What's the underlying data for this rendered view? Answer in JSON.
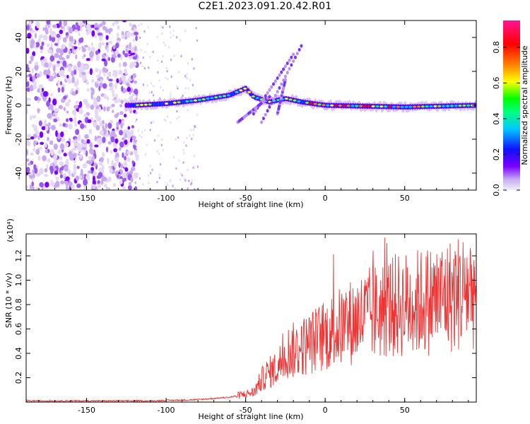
{
  "title": "C2E1.2023.091.20.42.R01",
  "colors": {
    "signal": "#ee3333",
    "axis": "#000000"
  },
  "chart_data": [
    {
      "type": "heatmap",
      "name": "spectrogram",
      "xlabel": "Height of straight line (km)",
      "ylabel": "Frequency (Hz)",
      "xlim": [
        -188,
        95
      ],
      "ylim": [
        -50,
        50
      ],
      "xticks": [
        -150,
        -100,
        -50,
        0,
        50
      ],
      "yticks": [
        -40,
        -20,
        0,
        20,
        40
      ],
      "colorbar": {
        "label": "Normalized spectral amplitude",
        "range": [
          0,
          0.95
        ],
        "ticks": [
          "0.0",
          "0.2",
          "0.4",
          "0.6",
          "0.8"
        ],
        "tick_values": [
          0.0,
          0.2,
          0.4,
          0.6,
          0.8
        ],
        "colormap": [
          "#e0d8f0",
          "#7a00ff",
          "#1010ff",
          "#00c8ff",
          "#00ff00",
          "#ffff00",
          "#ff8000",
          "#ff0000",
          "#ff1493"
        ]
      },
      "ridge": {
        "description_points": [
          {
            "x": -120,
            "f": 0
          },
          {
            "x": -100,
            "f": 1
          },
          {
            "x": -80,
            "f": 3
          },
          {
            "x": -60,
            "f": 6
          },
          {
            "x": -50,
            "f": 10
          },
          {
            "x": -45,
            "f": 5
          },
          {
            "x": -35,
            "f": 2
          },
          {
            "x": -25,
            "f": 4
          },
          {
            "x": -15,
            "f": 2
          },
          {
            "x": 0,
            "f": 0
          },
          {
            "x": 50,
            "f": -1
          },
          {
            "x": 95,
            "f": 0
          }
        ]
      }
    },
    {
      "type": "line",
      "name": "snr",
      "xlabel": "Height of straight line (km)",
      "ylabel": "SNR (10 * v/v)",
      "scale_label": "(x10⁴)",
      "xlim": [
        -188,
        95
      ],
      "ylim": [
        0,
        1.38
      ],
      "xticks": [
        -150,
        -100,
        -50,
        0,
        50
      ],
      "yticks": [
        0.2,
        0.4,
        0.6,
        0.8,
        1.0,
        1.2
      ],
      "ytick_labels": [
        "0.2",
        "0.4",
        "0.6",
        "0.8",
        "1.0",
        "1.2"
      ],
      "trend": [
        {
          "x": -188,
          "y": 0.01
        },
        {
          "x": -110,
          "y": 0.01
        },
        {
          "x": -80,
          "y": 0.02
        },
        {
          "x": -60,
          "y": 0.04
        },
        {
          "x": -45,
          "y": 0.08
        },
        {
          "x": -38,
          "y": 0.22
        },
        {
          "x": -30,
          "y": 0.28
        },
        {
          "x": -25,
          "y": 0.4
        },
        {
          "x": -15,
          "y": 0.45
        },
        {
          "x": 0,
          "y": 0.55
        },
        {
          "x": 20,
          "y": 0.68
        },
        {
          "x": 40,
          "y": 0.78
        },
        {
          "x": 60,
          "y": 0.82
        },
        {
          "x": 80,
          "y": 0.88
        },
        {
          "x": 95,
          "y": 0.95
        }
      ]
    }
  ]
}
